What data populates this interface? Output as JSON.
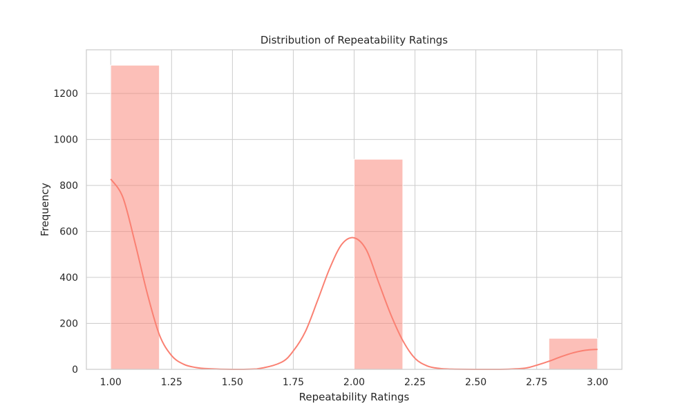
{
  "chart_data": {
    "type": "bar",
    "title": "Distribution of Repeatability Ratings",
    "xlabel": "Repeatability Ratings",
    "ylabel": "Frequency",
    "xlim": [
      0.9,
      3.1
    ],
    "ylim": [
      0,
      1390
    ],
    "x_ticks": [
      1.0,
      1.25,
      1.5,
      1.75,
      2.0,
      2.25,
      2.5,
      2.75,
      3.0
    ],
    "x_tick_labels": [
      "1.00",
      "1.25",
      "1.50",
      "1.75",
      "2.00",
      "2.25",
      "2.50",
      "2.75",
      "3.00"
    ],
    "y_ticks": [
      0,
      200,
      400,
      600,
      800,
      1000,
      1200
    ],
    "y_tick_labels": [
      "0",
      "200",
      "400",
      "600",
      "800",
      "1000",
      "1200"
    ],
    "grid": true,
    "bins": [
      {
        "x0": 1.0,
        "x1": 1.2,
        "value": 1323
      },
      {
        "x0": 1.2,
        "x1": 1.4,
        "value": 0
      },
      {
        "x0": 1.4,
        "x1": 1.6,
        "value": 0
      },
      {
        "x0": 1.6,
        "x1": 1.8,
        "value": 0
      },
      {
        "x0": 1.8,
        "x1": 2.0,
        "value": 0
      },
      {
        "x0": 2.0,
        "x1": 2.2,
        "value": 914
      },
      {
        "x0": 2.2,
        "x1": 2.4,
        "value": 0
      },
      {
        "x0": 2.4,
        "x1": 2.6,
        "value": 0
      },
      {
        "x0": 2.6,
        "x1": 2.8,
        "value": 0
      },
      {
        "x0": 2.8,
        "x1": 3.0,
        "value": 135
      }
    ],
    "kde": {
      "x": [
        1.0,
        1.05,
        1.1,
        1.15,
        1.2,
        1.25,
        1.3,
        1.35,
        1.4,
        1.5,
        1.6,
        1.7,
        1.75,
        1.8,
        1.85,
        1.9,
        1.95,
        2.0,
        2.05,
        2.1,
        2.15,
        2.2,
        2.25,
        2.3,
        2.35,
        2.4,
        2.5,
        2.6,
        2.7,
        2.75,
        2.8,
        2.85,
        2.9,
        2.95,
        3.0
      ],
      "y": [
        828,
        748,
        550,
        331,
        150,
        60,
        22,
        8,
        3,
        0,
        2,
        30,
        80,
        165,
        300,
        440,
        545,
        572,
        520,
        380,
        240,
        125,
        48,
        15,
        4,
        1,
        0,
        0,
        5,
        18,
        35,
        55,
        72,
        83,
        87
      ]
    },
    "colors": {
      "bar_fill": "#fa8072",
      "bar_opacity": 0.5,
      "bar_edge": "#ffffff",
      "kde_line": "#fa8072",
      "grid": "#cccccc",
      "axes_edge": "#cccccc",
      "background": "#ffffff"
    }
  }
}
